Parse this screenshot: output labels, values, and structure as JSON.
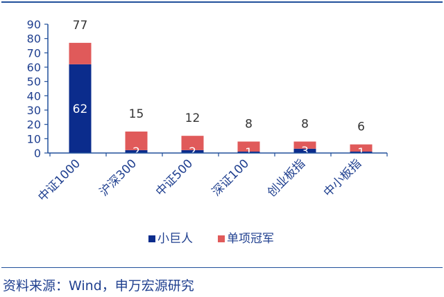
{
  "chart_data": {
    "type": "bar",
    "stacked": true,
    "categories": [
      "中证1000",
      "沪深300",
      "中证500",
      "深证100",
      "创业板指",
      "中小板指"
    ],
    "series": [
      {
        "name": "小巨人",
        "values": [
          62,
          2,
          2,
          1,
          3,
          1
        ],
        "color": "#0b2c8c"
      },
      {
        "name": "单项冠军",
        "values": [
          15,
          13,
          10,
          7,
          5,
          5
        ],
        "color": "#e05a5a"
      }
    ],
    "totals": [
      77,
      15,
      12,
      8,
      8,
      6
    ],
    "yticks": [
      0,
      10,
      20,
      30,
      40,
      50,
      60,
      70,
      80,
      90
    ],
    "ylim": [
      0,
      90
    ],
    "legend_position": "bottom-center",
    "grid": false
  },
  "source": "资料来源：Wind，申万宏源研究"
}
